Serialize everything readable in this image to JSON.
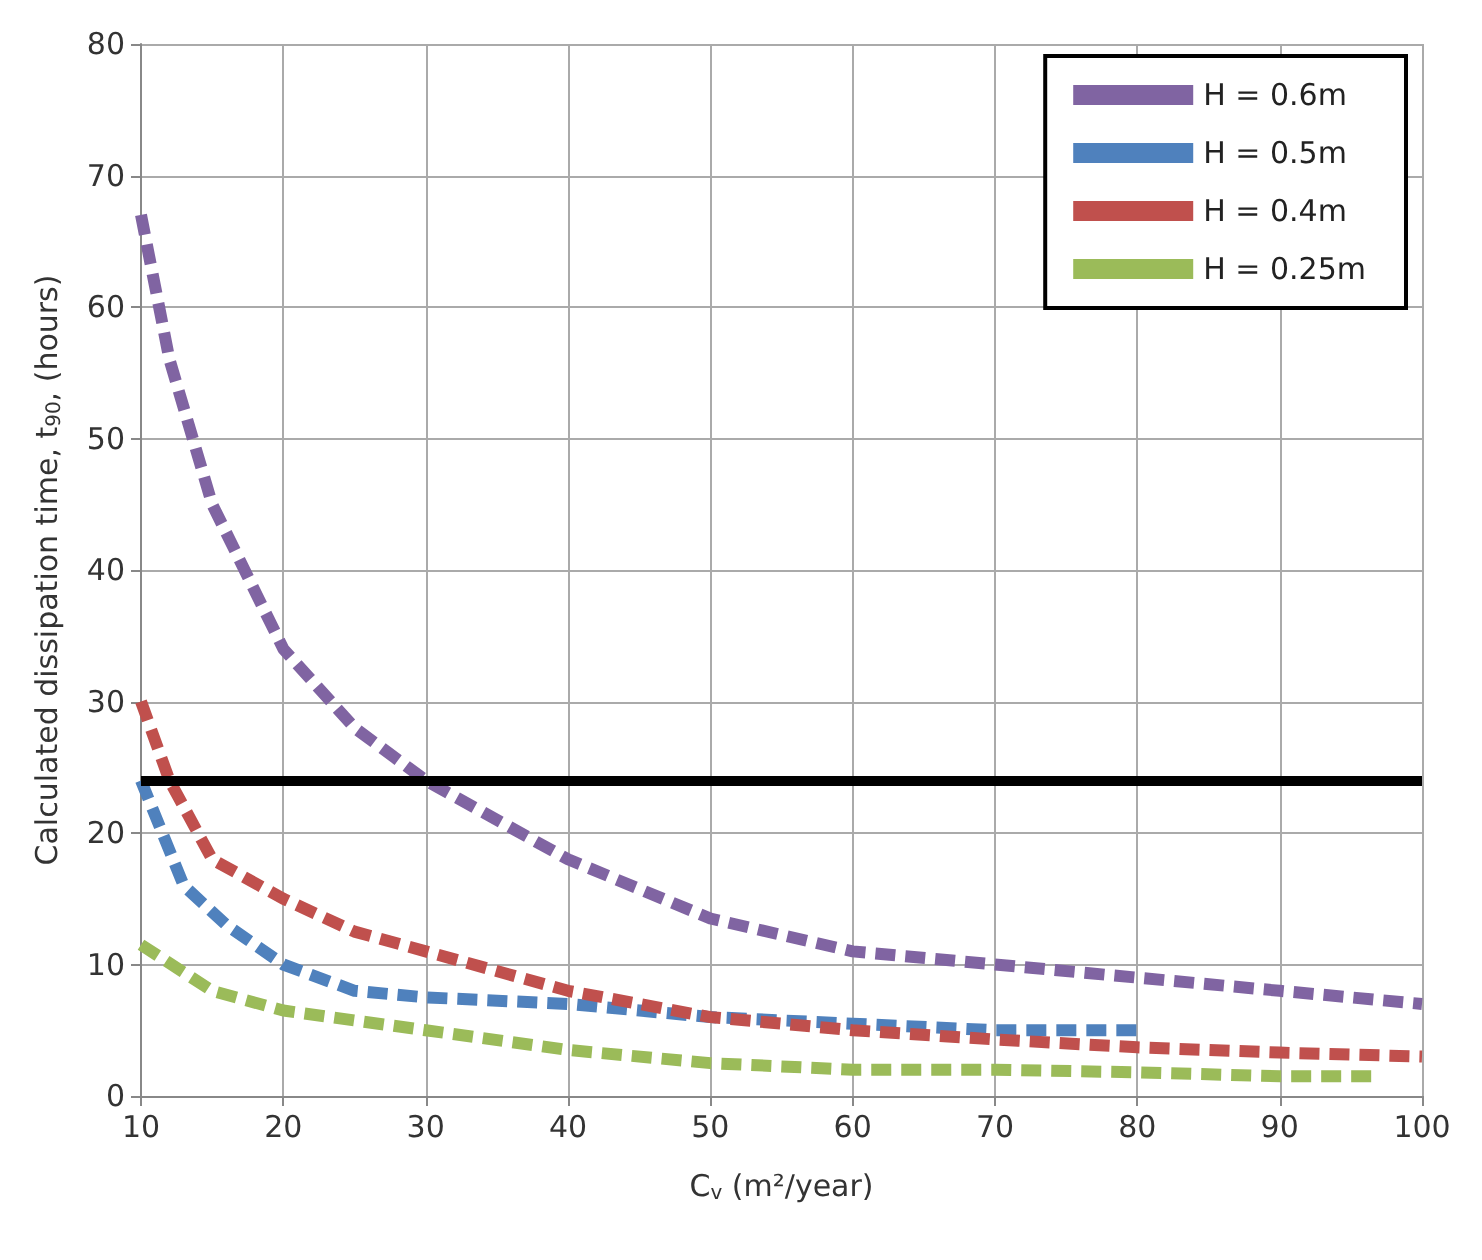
{
  "chart_data": {
    "type": "line",
    "xlabel": "C$_{v}$ (m²/year)",
    "ylabel": "Calculated dissipation time, t$_{90}$, (hours)",
    "xlim": [
      10,
      100
    ],
    "xticks": [
      10,
      20,
      30,
      40,
      50,
      60,
      70,
      80,
      90,
      100
    ],
    "ylim": [
      0,
      80
    ],
    "yticks": [
      0,
      10,
      20,
      30,
      40,
      50,
      60,
      70,
      80
    ],
    "grid": true,
    "legend": "top right",
    "marker": "none",
    "line_style": "dashed",
    "series": [
      {
        "name": "H = 0.6m",
        "color": "#8064a2",
        "x": [
          10,
          12,
          15,
          20,
          25,
          30,
          40,
          50,
          60,
          70,
          80,
          90,
          100
        ],
        "values": [
          67,
          56,
          45,
          34,
          28,
          24,
          18,
          13.5,
          11,
          10,
          9,
          8,
          7
        ]
      },
      {
        "name": "H = 0.5m",
        "color": "#4f81bd",
        "x": [
          10,
          13,
          16,
          20,
          25,
          30,
          40,
          50,
          60,
          70,
          80
        ],
        "values": [
          24,
          16,
          13,
          10,
          8,
          7.5,
          7,
          6,
          5.5,
          5,
          5
        ]
      },
      {
        "name": "H = 0.4m",
        "color": "#c0504d",
        "x": [
          10,
          12,
          15,
          20,
          25,
          30,
          40,
          50,
          60,
          70,
          80,
          90,
          100
        ],
        "values": [
          30,
          24,
          18,
          15,
          12.5,
          11,
          8,
          6,
          5,
          4.3,
          3.7,
          3.3,
          3
        ]
      },
      {
        "name": "H = 0.25m",
        "color": "#9bbb59",
        "x": [
          10,
          15,
          20,
          30,
          40,
          50,
          60,
          70,
          80,
          90,
          97
        ],
        "values": [
          11.5,
          8,
          6.5,
          5,
          3.5,
          2.5,
          2,
          2,
          1.8,
          1.5,
          1.5
        ]
      }
    ],
    "ref_lines": [
      {
        "axis": "y",
        "value": 24,
        "color": "#000000"
      }
    ]
  }
}
